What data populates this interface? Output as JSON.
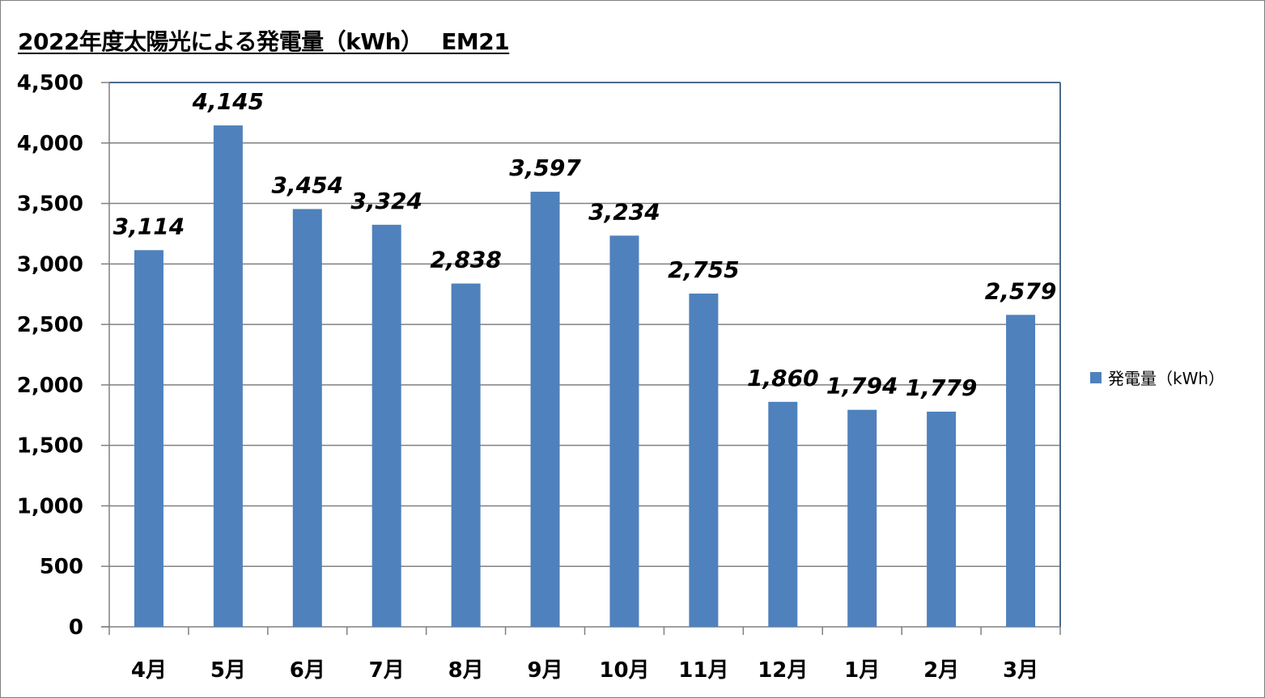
{
  "chart_title": "2022年度太陽光による発電量（kWh）　 EM21",
  "chart_data": {
    "type": "bar",
    "categories": [
      "4月",
      "5月",
      "6月",
      "7月",
      "8月",
      "9月",
      "10月",
      "11月",
      "12月",
      "1月",
      "2月",
      "3月"
    ],
    "series": [
      {
        "name": "発電量（kWh）",
        "values": [
          3114,
          4145,
          3454,
          3324,
          2838,
          3597,
          3234,
          2755,
          1860,
          1794,
          1779,
          2579
        ],
        "labels": [
          "3,114",
          "4,145",
          "3,454",
          "3,324",
          "2,838",
          "3,597",
          "3,234",
          "2,755",
          "1,860",
          "1,794",
          "1,779",
          "2,579"
        ]
      }
    ],
    "title": "2022年度太陽光による発電量（kWh）　 EM21",
    "xlabel": "",
    "ylabel": "",
    "ylim": [
      0,
      4500
    ],
    "yticks": [
      0,
      500,
      1000,
      1500,
      2000,
      2500,
      3000,
      3500,
      4000,
      4500
    ],
    "ytick_labels": [
      "0",
      "500",
      "1,000",
      "1,500",
      "2,000",
      "2,500",
      "3,000",
      "3,500",
      "4,000",
      "4,500"
    ],
    "grid": true,
    "legend_position": "right",
    "colors": {
      "bar": "#4f81bd",
      "grid": "#808080",
      "plot_border": "#4a6b8a"
    }
  },
  "legend": {
    "label": "発電量（kWh）"
  }
}
